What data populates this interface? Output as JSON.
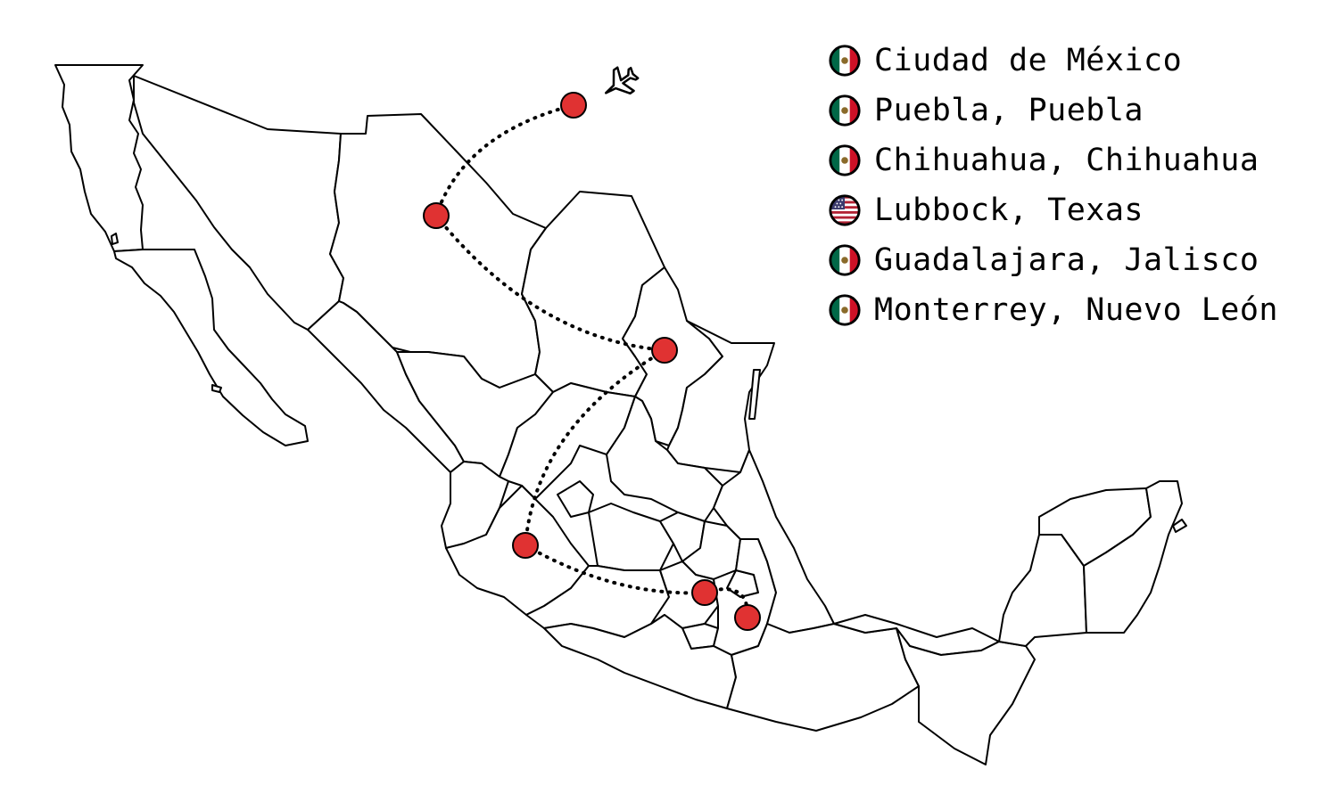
{
  "legend": {
    "items": [
      {
        "label": "Ciudad de México",
        "flag": "mexico-flag-icon"
      },
      {
        "label": "Puebla, Puebla",
        "flag": "mexico-flag-icon"
      },
      {
        "label": "Chihuahua, Chihuahua",
        "flag": "mexico-flag-icon"
      },
      {
        "label": "Lubbock, Texas",
        "flag": "usa-flag-icon"
      },
      {
        "label": "Guadalajara, Jalisco",
        "flag": "mexico-flag-icon"
      },
      {
        "label": "Monterrey, Nuevo León",
        "flag": "mexico-flag-icon"
      }
    ]
  },
  "map": {
    "route_icon": "airplane-icon",
    "stop_color": "#e03232"
  },
  "colors": {
    "mexico_green": "#006847",
    "mexico_red": "#ce1126",
    "usa_red": "#b22234",
    "usa_blue": "#3c3b6e"
  }
}
